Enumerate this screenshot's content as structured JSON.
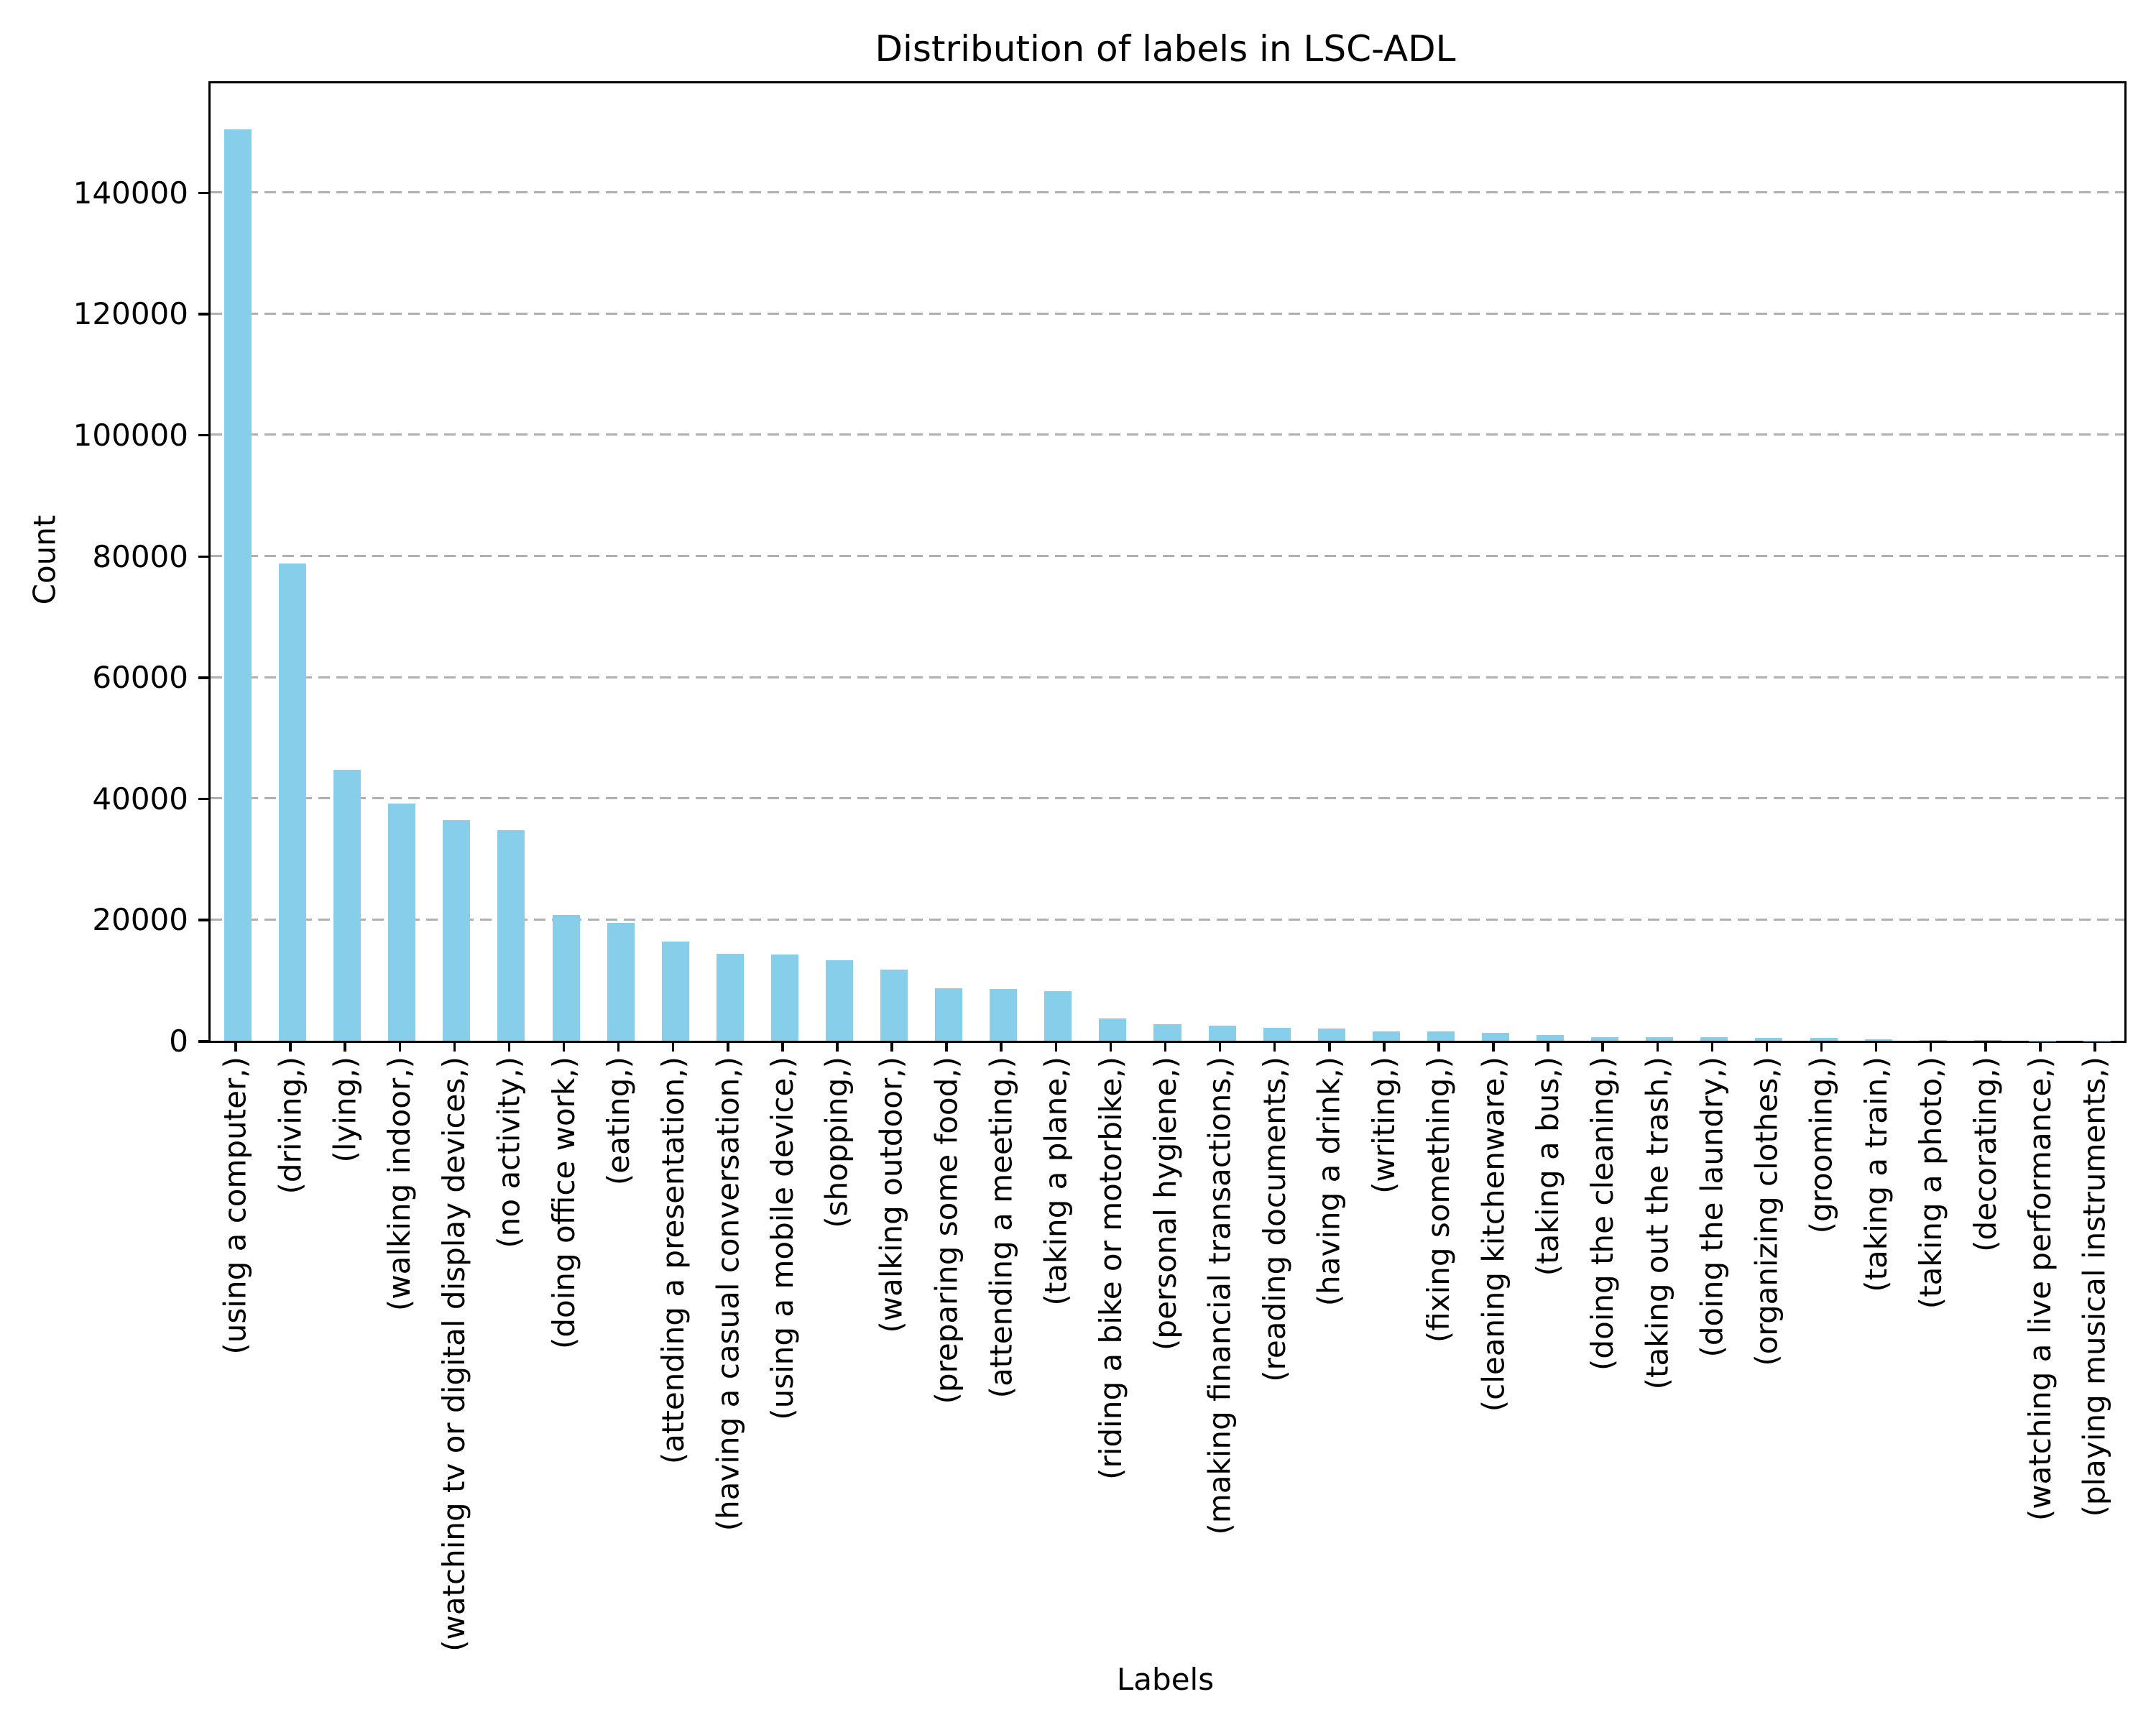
{
  "chart_data": {
    "type": "bar",
    "title": "Distribution of labels in LSC-ADL",
    "xlabel": "Labels",
    "ylabel": "Count",
    "categories": [
      "(using a computer,)",
      "(driving,)",
      "(lying,)",
      "(walking indoor,)",
      "(watching tv or digital display devices,)",
      "(no activity,)",
      "(doing office work,)",
      "(eating,)",
      "(attending a presentation,)",
      "(having a casual conversation,)",
      "(using a mobile device,)",
      "(shopping,)",
      "(walking outdoor,)",
      "(preparing some food,)",
      "(attending a meeting,)",
      "(taking a plane,)",
      "(riding a bike or motorbike,)",
      "(personal hygiene,)",
      "(making financial transactions,)",
      "(reading documents,)",
      "(having a drink,)",
      "(writing,)",
      "(fixing something,)",
      "(cleaning kitchenware,)",
      "(taking a bus,)",
      "(doing the cleaning,)",
      "(taking out the trash,)",
      "(doing the laundry,)",
      "(organizing clothes,)",
      "(grooming,)",
      "(taking a train,)",
      "(taking a photo,)",
      "(decorating,)",
      "(watching a live performance,)",
      "(playing musical instruments,)"
    ],
    "values": [
      150400,
      78800,
      44700,
      39100,
      36400,
      34800,
      20700,
      19400,
      16400,
      14400,
      14200,
      13250,
      11700,
      8650,
      8500,
      8150,
      3650,
      2700,
      2450,
      2100,
      2000,
      1600,
      1550,
      1350,
      950,
      640,
      620,
      600,
      450,
      420,
      220,
      120,
      60,
      35,
      25
    ],
    "ylim": [
      0,
      158000
    ],
    "yticks": [
      0,
      20000,
      40000,
      60000,
      80000,
      100000,
      120000,
      140000
    ],
    "legend": "none",
    "grid": "horizontal-dashed",
    "bar_color": "#87CEEB",
    "grid_color": "#b0b0b0",
    "axis_color": "#000000"
  }
}
